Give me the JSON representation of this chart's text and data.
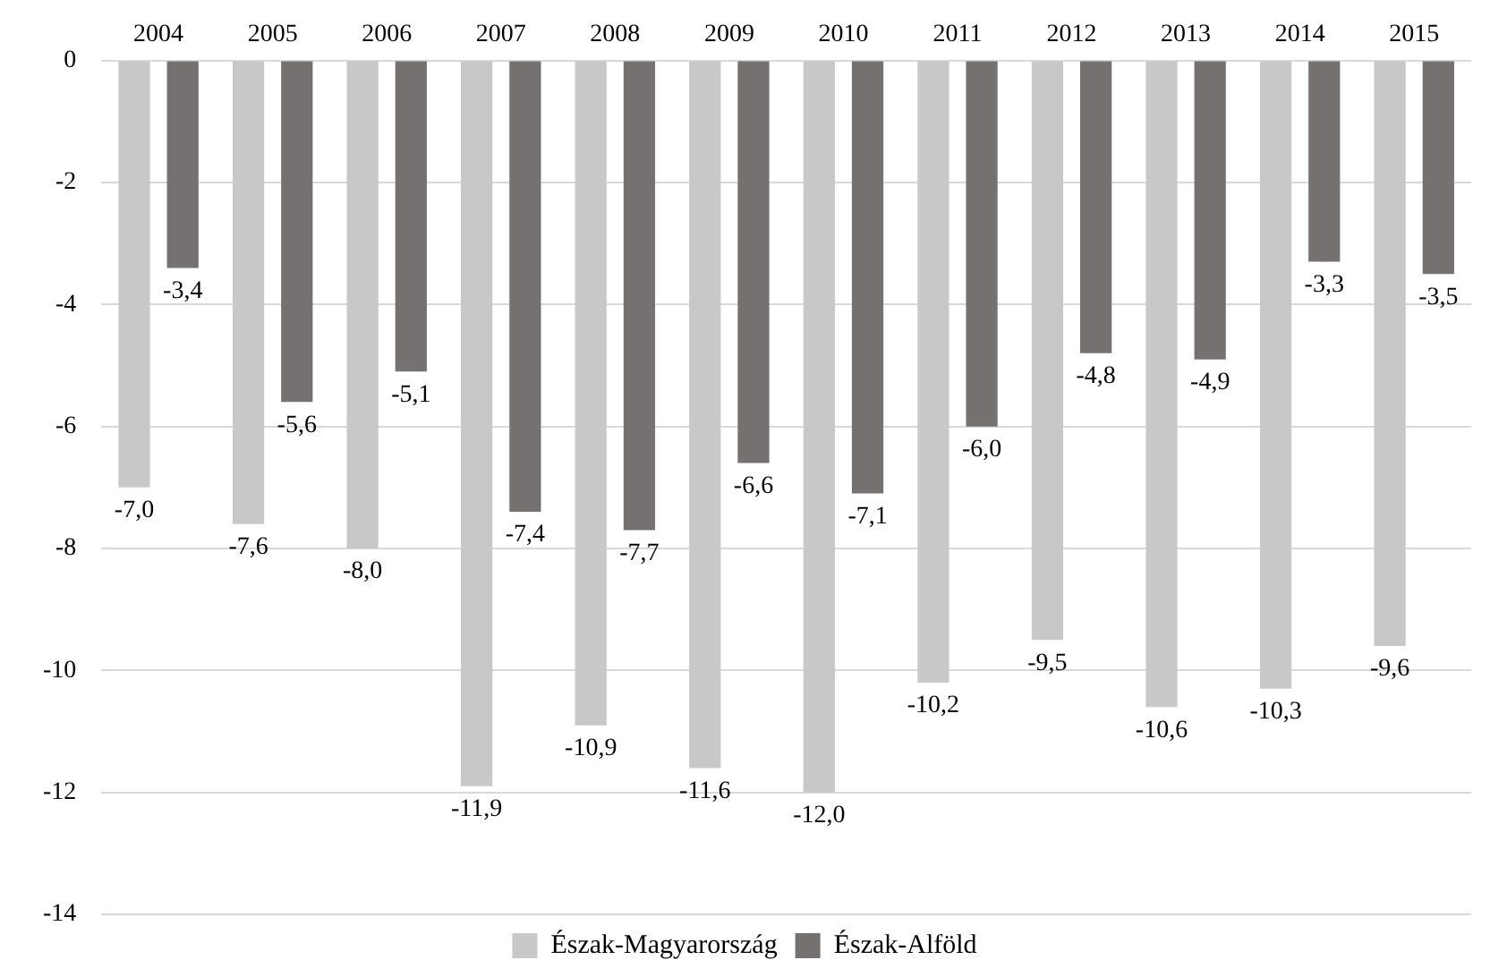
{
  "chart_data": {
    "type": "bar",
    "categories": [
      "2004",
      "2005",
      "2006",
      "2007",
      "2008",
      "2009",
      "2010",
      "2011",
      "2012",
      "2013",
      "2014",
      "2015"
    ],
    "series": [
      {
        "name": "Észak-Magyarország",
        "color": "#c8c8c8",
        "values": [
          -7.0,
          -7.6,
          -8.0,
          -11.9,
          -10.9,
          -11.6,
          -12.0,
          -10.2,
          -9.5,
          -10.6,
          -10.3,
          -9.6
        ],
        "value_labels": [
          "-7,0",
          "-7,6",
          "-8,0",
          "-11,9",
          "-10,9",
          "-11,6",
          "-12,0",
          "-10,2",
          "-9,5",
          "-10,6",
          "-10,3",
          "-9,6"
        ]
      },
      {
        "name": "Észak-Alföld",
        "color": "#767171",
        "values": [
          -3.4,
          -5.6,
          -5.1,
          -7.4,
          -7.7,
          -6.6,
          -7.1,
          -6.0,
          -4.8,
          -4.9,
          -3.3,
          -3.5
        ],
        "value_labels": [
          "-3,4",
          "-5,6",
          "-5,1",
          "-7,4",
          "-7,7",
          "-6,6",
          "-7,1",
          "-6,0",
          "-4,8",
          "-4,9",
          "-3,3",
          "-3,5"
        ]
      }
    ],
    "ylim": [
      -14,
      0
    ],
    "yticks": [
      0,
      -2,
      -4,
      -6,
      -8,
      -10,
      -12,
      -14
    ],
    "grid": "y",
    "legend": "bottom"
  }
}
